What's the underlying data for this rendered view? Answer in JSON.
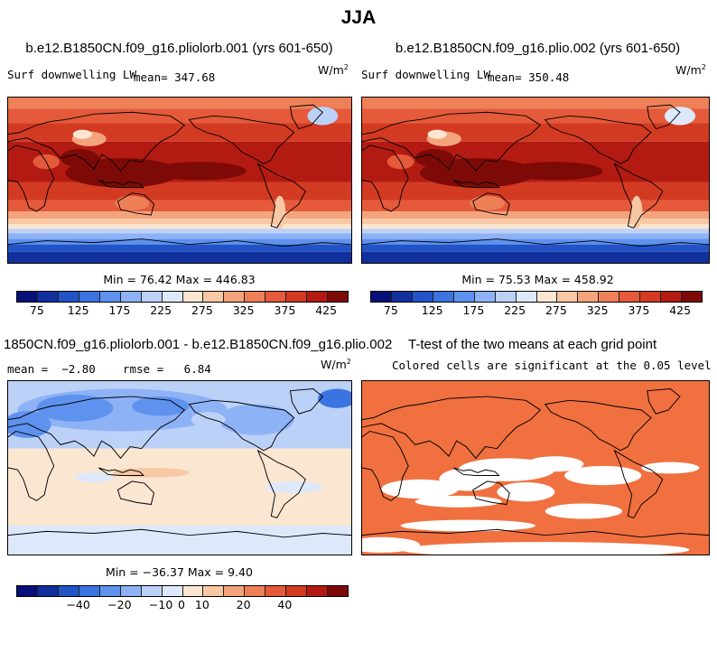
{
  "figure": {
    "title": "JJA"
  },
  "units_base": "W/m",
  "units_exp": "2",
  "panels": {
    "p1": {
      "title": "b.e12.B1850CN.f09_g16.pliolorb.001 (yrs 601-650)",
      "variable": "Surf downwelling LW",
      "mean_label": "mean= 347.68",
      "minmax": "Min =  76.42 Max = 446.83"
    },
    "p2": {
      "title": "b.e12.B1850CN.f09_g16.plio.002 (yrs 601-650)",
      "variable": "Surf downwelling LW",
      "mean_label": "mean= 350.48",
      "minmax": "Min =  75.53 Max = 458.92"
    },
    "p3": {
      "title": "1850CN.f09_g16.pliolorb.001 - b.e12.B1850CN.f09_g16.plio.002",
      "stats": "mean =  −2.80    rmse =   6.84",
      "minmax": "Min = −36.37 Max =   9.40"
    },
    "p4": {
      "title": "T-test of the two means at each grid point",
      "subtitle": "Colored cells are significant at the 0.05 level"
    }
  },
  "chart_data": [
    {
      "type": "heatmap",
      "name": "Surf downwelling LW (pliolorb.001)",
      "units": "W/m2",
      "mean": 347.68,
      "min": 76.42,
      "max": 446.83,
      "colorbar_ticks": [
        "75",
        "125",
        "175",
        "225",
        "275",
        "325",
        "375",
        "425"
      ],
      "colorbar_colors": [
        "#08107a",
        "#12309c",
        "#2254c8",
        "#3b74e0",
        "#5e92ee",
        "#8eb2f6",
        "#bcd1f8",
        "#dde9fb",
        "#fbe6d2",
        "#f8c7a3",
        "#f4a47c",
        "#ee8058",
        "#e45a3a",
        "#d23a22",
        "#b31b12",
        "#7e0a08"
      ]
    },
    {
      "type": "heatmap",
      "name": "Surf downwelling LW (plio.002)",
      "units": "W/m2",
      "mean": 350.48,
      "min": 75.53,
      "max": 458.92,
      "colorbar_ticks": [
        "75",
        "125",
        "175",
        "225",
        "275",
        "325",
        "375",
        "425"
      ],
      "colorbar_colors": [
        "#08107a",
        "#12309c",
        "#2254c8",
        "#3b74e0",
        "#5e92ee",
        "#8eb2f6",
        "#bcd1f8",
        "#dde9fb",
        "#fbe6d2",
        "#f8c7a3",
        "#f4a47c",
        "#ee8058",
        "#e45a3a",
        "#d23a22",
        "#b31b12",
        "#7e0a08"
      ]
    },
    {
      "type": "heatmap",
      "name": "Difference pliolorb.001 - plio.002",
      "units": "W/m2",
      "mean": -2.8,
      "rmse": 6.84,
      "min": -36.37,
      "max": 9.4,
      "colorbar_ticks": [
        "−40",
        "−20",
        "−10",
        "0",
        "10",
        "20",
        "40"
      ],
      "colorbar_colors": [
        "#08107a",
        "#12309c",
        "#2254c8",
        "#3b74e0",
        "#5e92ee",
        "#8eb2f6",
        "#bcd1f8",
        "#dde9fb",
        "#fbe6d2",
        "#f8c7a3",
        "#f4a47c",
        "#ee8058",
        "#e45a3a",
        "#d23a22",
        "#b31b12",
        "#7e0a08"
      ]
    },
    {
      "type": "heatmap",
      "name": "T-test significance mask",
      "significance_level": 0.05,
      "significant_color": "#f07040"
    }
  ]
}
